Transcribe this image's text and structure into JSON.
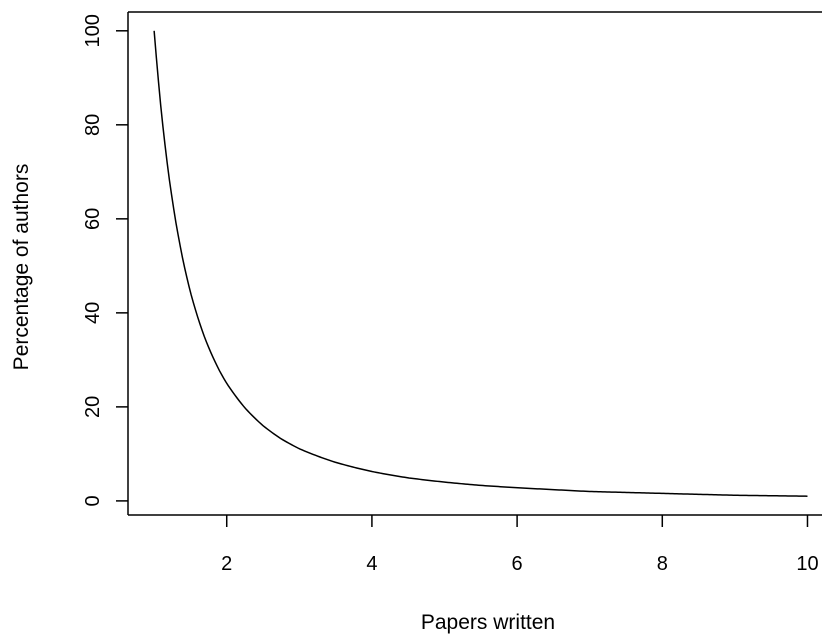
{
  "chart_data": {
    "type": "line",
    "title": "",
    "xlabel": "Papers written",
    "ylabel": "Percentage of authors",
    "xlim": [
      0.64,
      10.2
    ],
    "ylim": [
      -3,
      104
    ],
    "xticks": [
      2,
      4,
      6,
      8,
      10
    ],
    "yticks": [
      0,
      20,
      40,
      60,
      80,
      100
    ],
    "grid": false,
    "legend": "none",
    "line_color": "#000000",
    "series": [
      {
        "x": [
          1,
          1.1,
          1.2,
          1.3,
          1.4,
          1.5,
          1.6,
          1.7,
          1.8,
          1.9,
          2,
          2.25,
          2.5,
          2.75,
          3,
          3.5,
          4,
          4.5,
          5,
          5.5,
          6,
          6.5,
          7,
          7.5,
          8,
          8.5,
          9,
          9.5,
          10
        ],
        "values": [
          100,
          82.6,
          69.4,
          59.2,
          51.0,
          44.4,
          39.1,
          34.6,
          30.9,
          27.7,
          25.0,
          19.8,
          16.0,
          13.2,
          11.1,
          8.2,
          6.25,
          4.9,
          4.0,
          3.3,
          2.8,
          2.4,
          2.0,
          1.8,
          1.6,
          1.4,
          1.2,
          1.1,
          1.0
        ]
      }
    ]
  }
}
